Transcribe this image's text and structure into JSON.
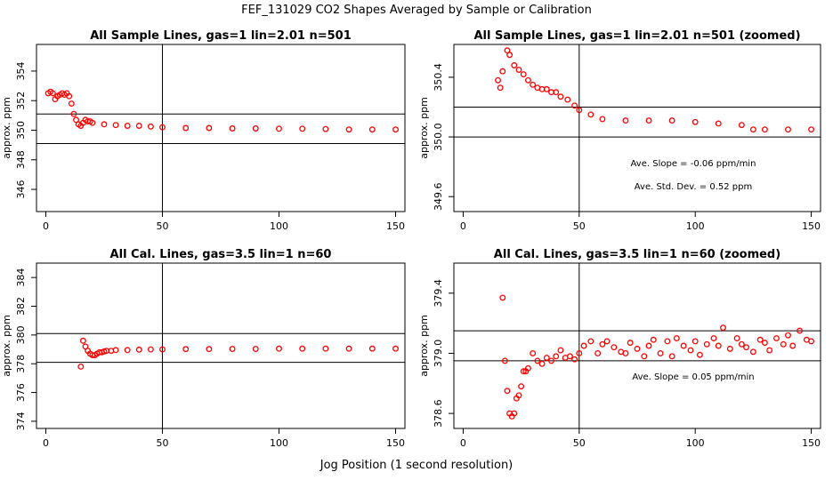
{
  "page": {
    "title": "FEF_131029  CO2 Shapes Averaged by Sample or Calibration",
    "xlabel": "Jog Position (1 second resolution)"
  },
  "colors": {
    "points": "#ff0000",
    "lines": "#000000"
  },
  "chart_data": [
    {
      "id": "p1",
      "type": "scatter",
      "title": "All Sample Lines, gas=1 lin=2.01 n=501",
      "ylabel": "approx. ppm",
      "xlim": [
        -4,
        154
      ],
      "ylim": [
        344.5,
        355.8
      ],
      "xticks": [
        0,
        50,
        100,
        150
      ],
      "yticks": [
        346,
        348,
        350,
        352,
        354
      ],
      "vline": 50,
      "hlines": [
        349.1,
        351.1
      ],
      "annotations": [],
      "x": [
        1,
        2,
        3,
        4,
        5,
        6,
        7,
        8,
        9,
        10,
        11,
        12,
        13,
        14,
        15,
        16,
        17,
        18,
        19,
        20,
        25,
        30,
        35,
        40,
        45,
        50,
        60,
        70,
        80,
        90,
        100,
        110,
        120,
        130,
        140,
        150
      ],
      "y": [
        352.5,
        352.6,
        352.5,
        352.1,
        352.3,
        352.4,
        352.5,
        352.4,
        352.5,
        352.3,
        351.8,
        351.1,
        350.7,
        350.4,
        350.3,
        350.5,
        350.7,
        350.6,
        350.6,
        350.5,
        350.4,
        350.35,
        350.3,
        350.3,
        350.25,
        350.2,
        350.15,
        350.15,
        350.12,
        350.12,
        350.1,
        350.1,
        350.08,
        350.05,
        350.05,
        350.05
      ]
    },
    {
      "id": "p2",
      "type": "scatter",
      "title": "All Sample Lines, gas=1 lin=2.01 n=501 (zoomed)",
      "ylabel": "approx. ppm",
      "xlim": [
        -4,
        154
      ],
      "ylim": [
        349.5,
        350.62
      ],
      "xticks": [
        0,
        50,
        100,
        150
      ],
      "yticks": [
        349.6,
        350.0,
        350.4
      ],
      "vline": 50,
      "hlines": [
        350.0,
        350.2
      ],
      "annotations": [
        "Ave. Slope =  -0.06  ppm/min",
        "Ave. Std. Dev. =  0.52  ppm"
      ],
      "x": [
        15,
        16,
        17,
        19,
        20,
        22,
        24,
        26,
        28,
        30,
        32,
        34,
        36,
        38,
        40,
        42,
        45,
        48,
        50,
        55,
        60,
        70,
        80,
        90,
        100,
        110,
        120,
        125,
        130,
        140,
        150
      ],
      "y": [
        350.38,
        350.33,
        350.44,
        350.58,
        350.55,
        350.48,
        350.45,
        350.42,
        350.38,
        350.35,
        350.33,
        350.32,
        350.32,
        350.3,
        350.3,
        350.27,
        350.25,
        350.21,
        350.18,
        350.15,
        350.12,
        350.11,
        350.11,
        350.11,
        350.1,
        350.09,
        350.08,
        350.05,
        350.05,
        350.05,
        350.05
      ]
    },
    {
      "id": "p3",
      "type": "scatter",
      "title": "All Cal. Lines, gas=3.5 lin=1 n=60",
      "ylabel": "approx. ppm",
      "xlim": [
        -4,
        154
      ],
      "ylim": [
        373.5,
        385.0
      ],
      "xticks": [
        0,
        50,
        100,
        150
      ],
      "yticks": [
        374,
        376,
        378,
        380,
        382,
        384
      ],
      "vline": 50,
      "hlines": [
        378.1,
        380.1
      ],
      "annotations": [],
      "x": [
        15,
        16,
        17,
        18,
        19,
        20,
        21,
        22,
        23,
        24,
        25,
        26,
        28,
        30,
        35,
        40,
        45,
        50,
        60,
        70,
        80,
        90,
        100,
        110,
        120,
        130,
        140,
        150
      ],
      "y": [
        377.8,
        379.6,
        379.2,
        378.9,
        378.7,
        378.6,
        378.6,
        378.7,
        378.8,
        378.8,
        378.85,
        378.9,
        378.9,
        378.95,
        378.95,
        378.98,
        379.0,
        379.0,
        379.02,
        379.02,
        379.03,
        379.03,
        379.05,
        379.05,
        379.05,
        379.05,
        379.05,
        379.05
      ]
    },
    {
      "id": "p4",
      "type": "scatter",
      "title": "All Cal. Lines, gas=3.5 lin=1 n=60 (zoomed)",
      "ylabel": "approx. ppm",
      "xlim": [
        -4,
        154
      ],
      "ylim": [
        378.5,
        379.6
      ],
      "xticks": [
        0,
        50,
        100,
        150
      ],
      "yticks": [
        378.6,
        379.0,
        379.4
      ],
      "vline": 50,
      "hlines": [
        378.95,
        379.15
      ],
      "annotations": [
        "Ave. Slope =  0.05  ppm/min"
      ],
      "x": [
        17,
        18,
        19,
        20,
        21,
        22,
        23,
        24,
        25,
        26,
        27,
        28,
        30,
        32,
        34,
        36,
        38,
        40,
        42,
        44,
        46,
        48,
        50,
        52,
        55,
        58,
        60,
        62,
        65,
        68,
        70,
        72,
        75,
        78,
        80,
        82,
        85,
        88,
        90,
        92,
        95,
        98,
        100,
        102,
        105,
        108,
        110,
        112,
        115,
        118,
        120,
        122,
        125,
        128,
        130,
        132,
        135,
        138,
        140,
        142,
        145,
        148,
        150
      ],
      "y": [
        379.37,
        378.95,
        378.75,
        378.6,
        378.58,
        378.6,
        378.7,
        378.72,
        378.78,
        378.88,
        378.88,
        378.9,
        379.0,
        378.95,
        378.93,
        378.97,
        378.95,
        378.98,
        379.02,
        378.97,
        378.98,
        378.96,
        379.0,
        379.05,
        379.08,
        379.0,
        379.06,
        379.08,
        379.04,
        379.01,
        379.0,
        379.07,
        379.03,
        378.98,
        379.05,
        379.09,
        379.0,
        379.08,
        378.98,
        379.1,
        379.05,
        379.02,
        379.08,
        378.99,
        379.06,
        379.1,
        379.05,
        379.17,
        379.03,
        379.1,
        379.06,
        379.04,
        379.01,
        379.09,
        379.07,
        379.02,
        379.1,
        379.06,
        379.12,
        379.05,
        379.15,
        379.09,
        379.08
      ]
    }
  ]
}
